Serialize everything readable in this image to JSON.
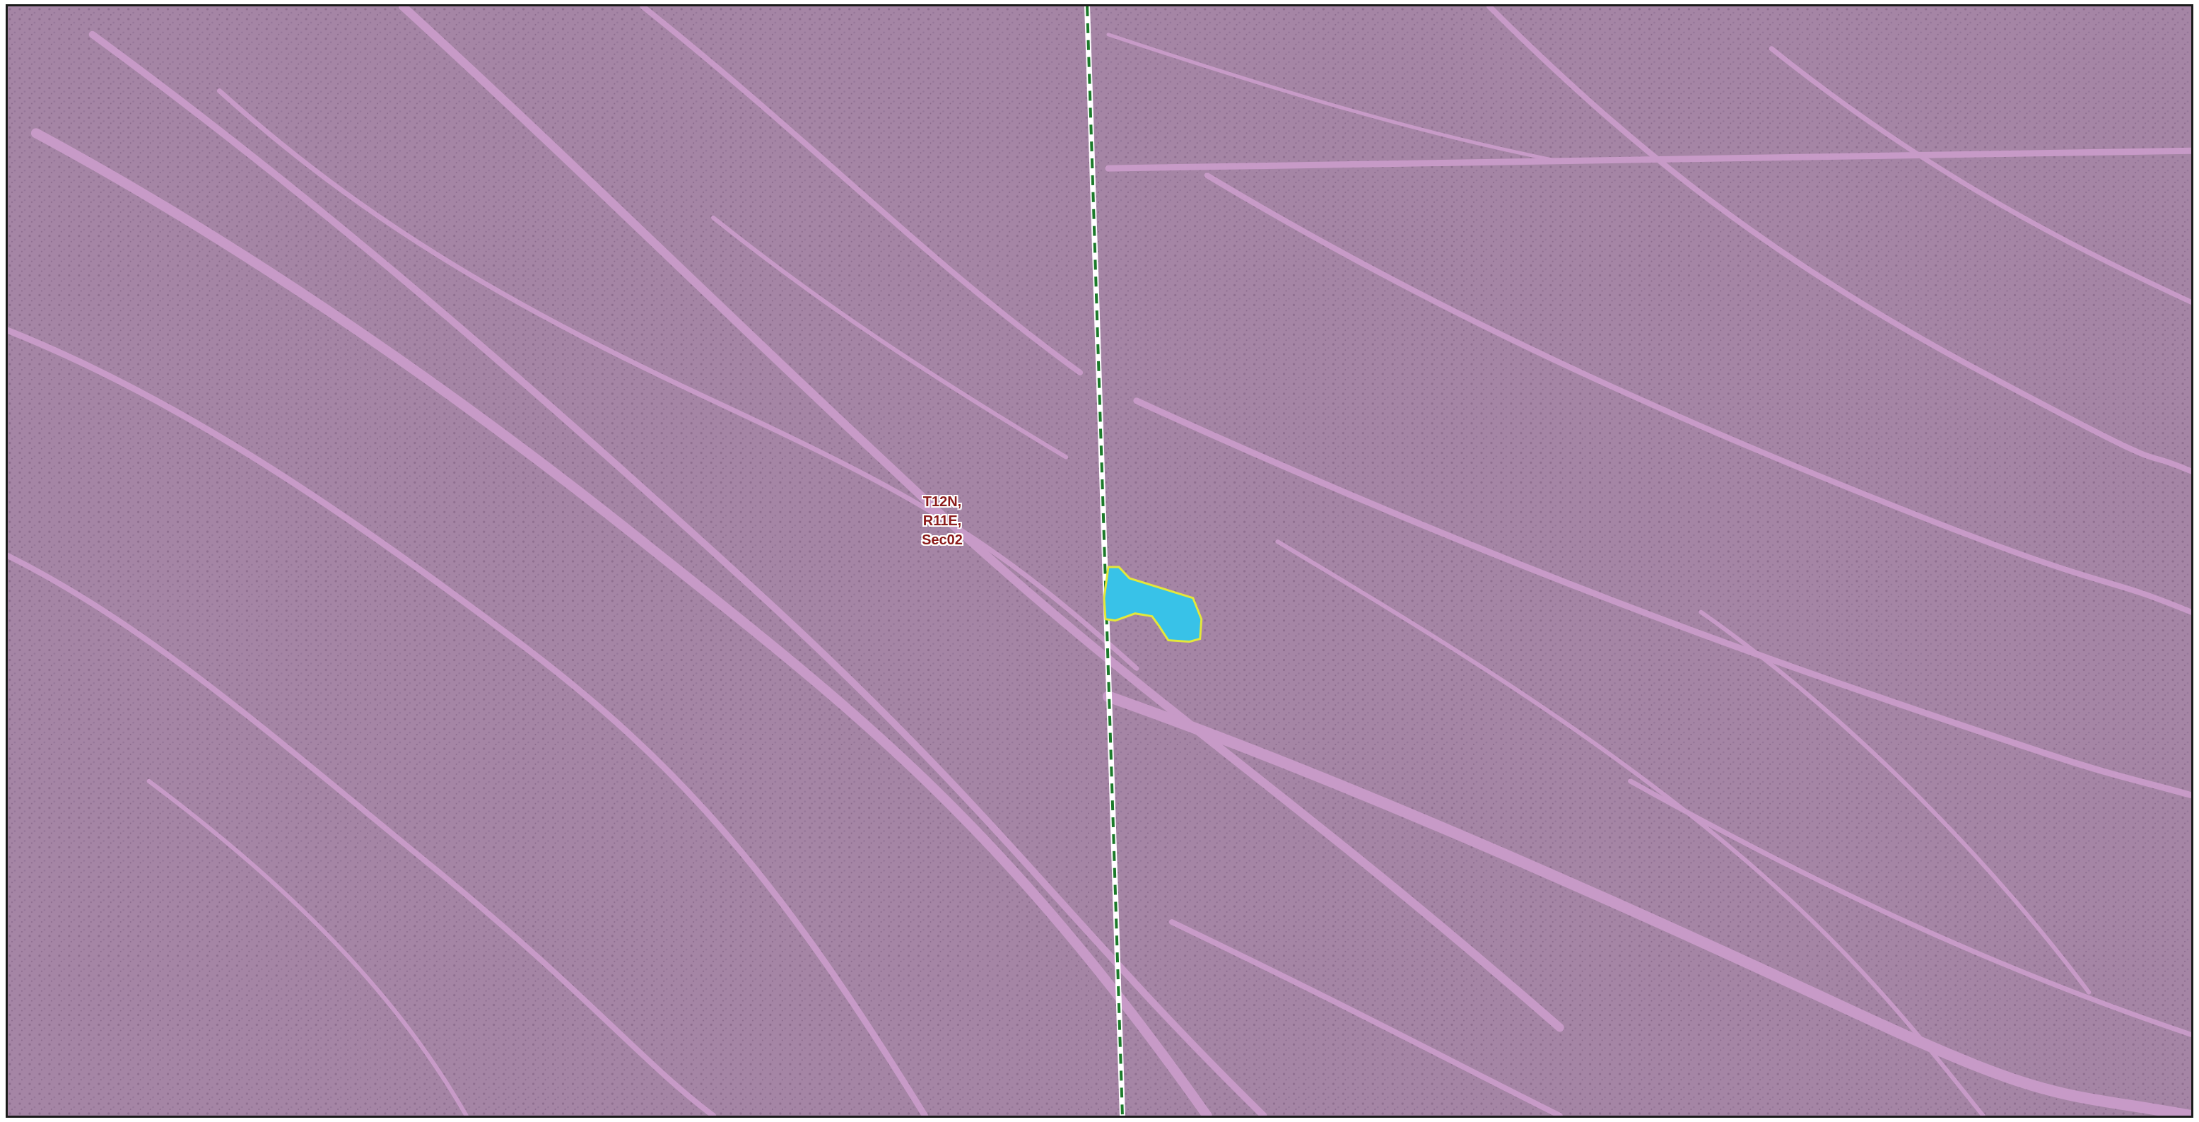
{
  "map": {
    "section_label": {
      "line1": "T12N,",
      "line2": "R11E,",
      "line3": "Sec02"
    },
    "basemap_tint": "#a585a5",
    "wash_color": "#c79ac7",
    "boundary_line_color": "#1b7a2a",
    "feature_fill": "#38c2e8",
    "feature_outline": "#e4e83a",
    "frame_color": "#1a1a1a"
  }
}
